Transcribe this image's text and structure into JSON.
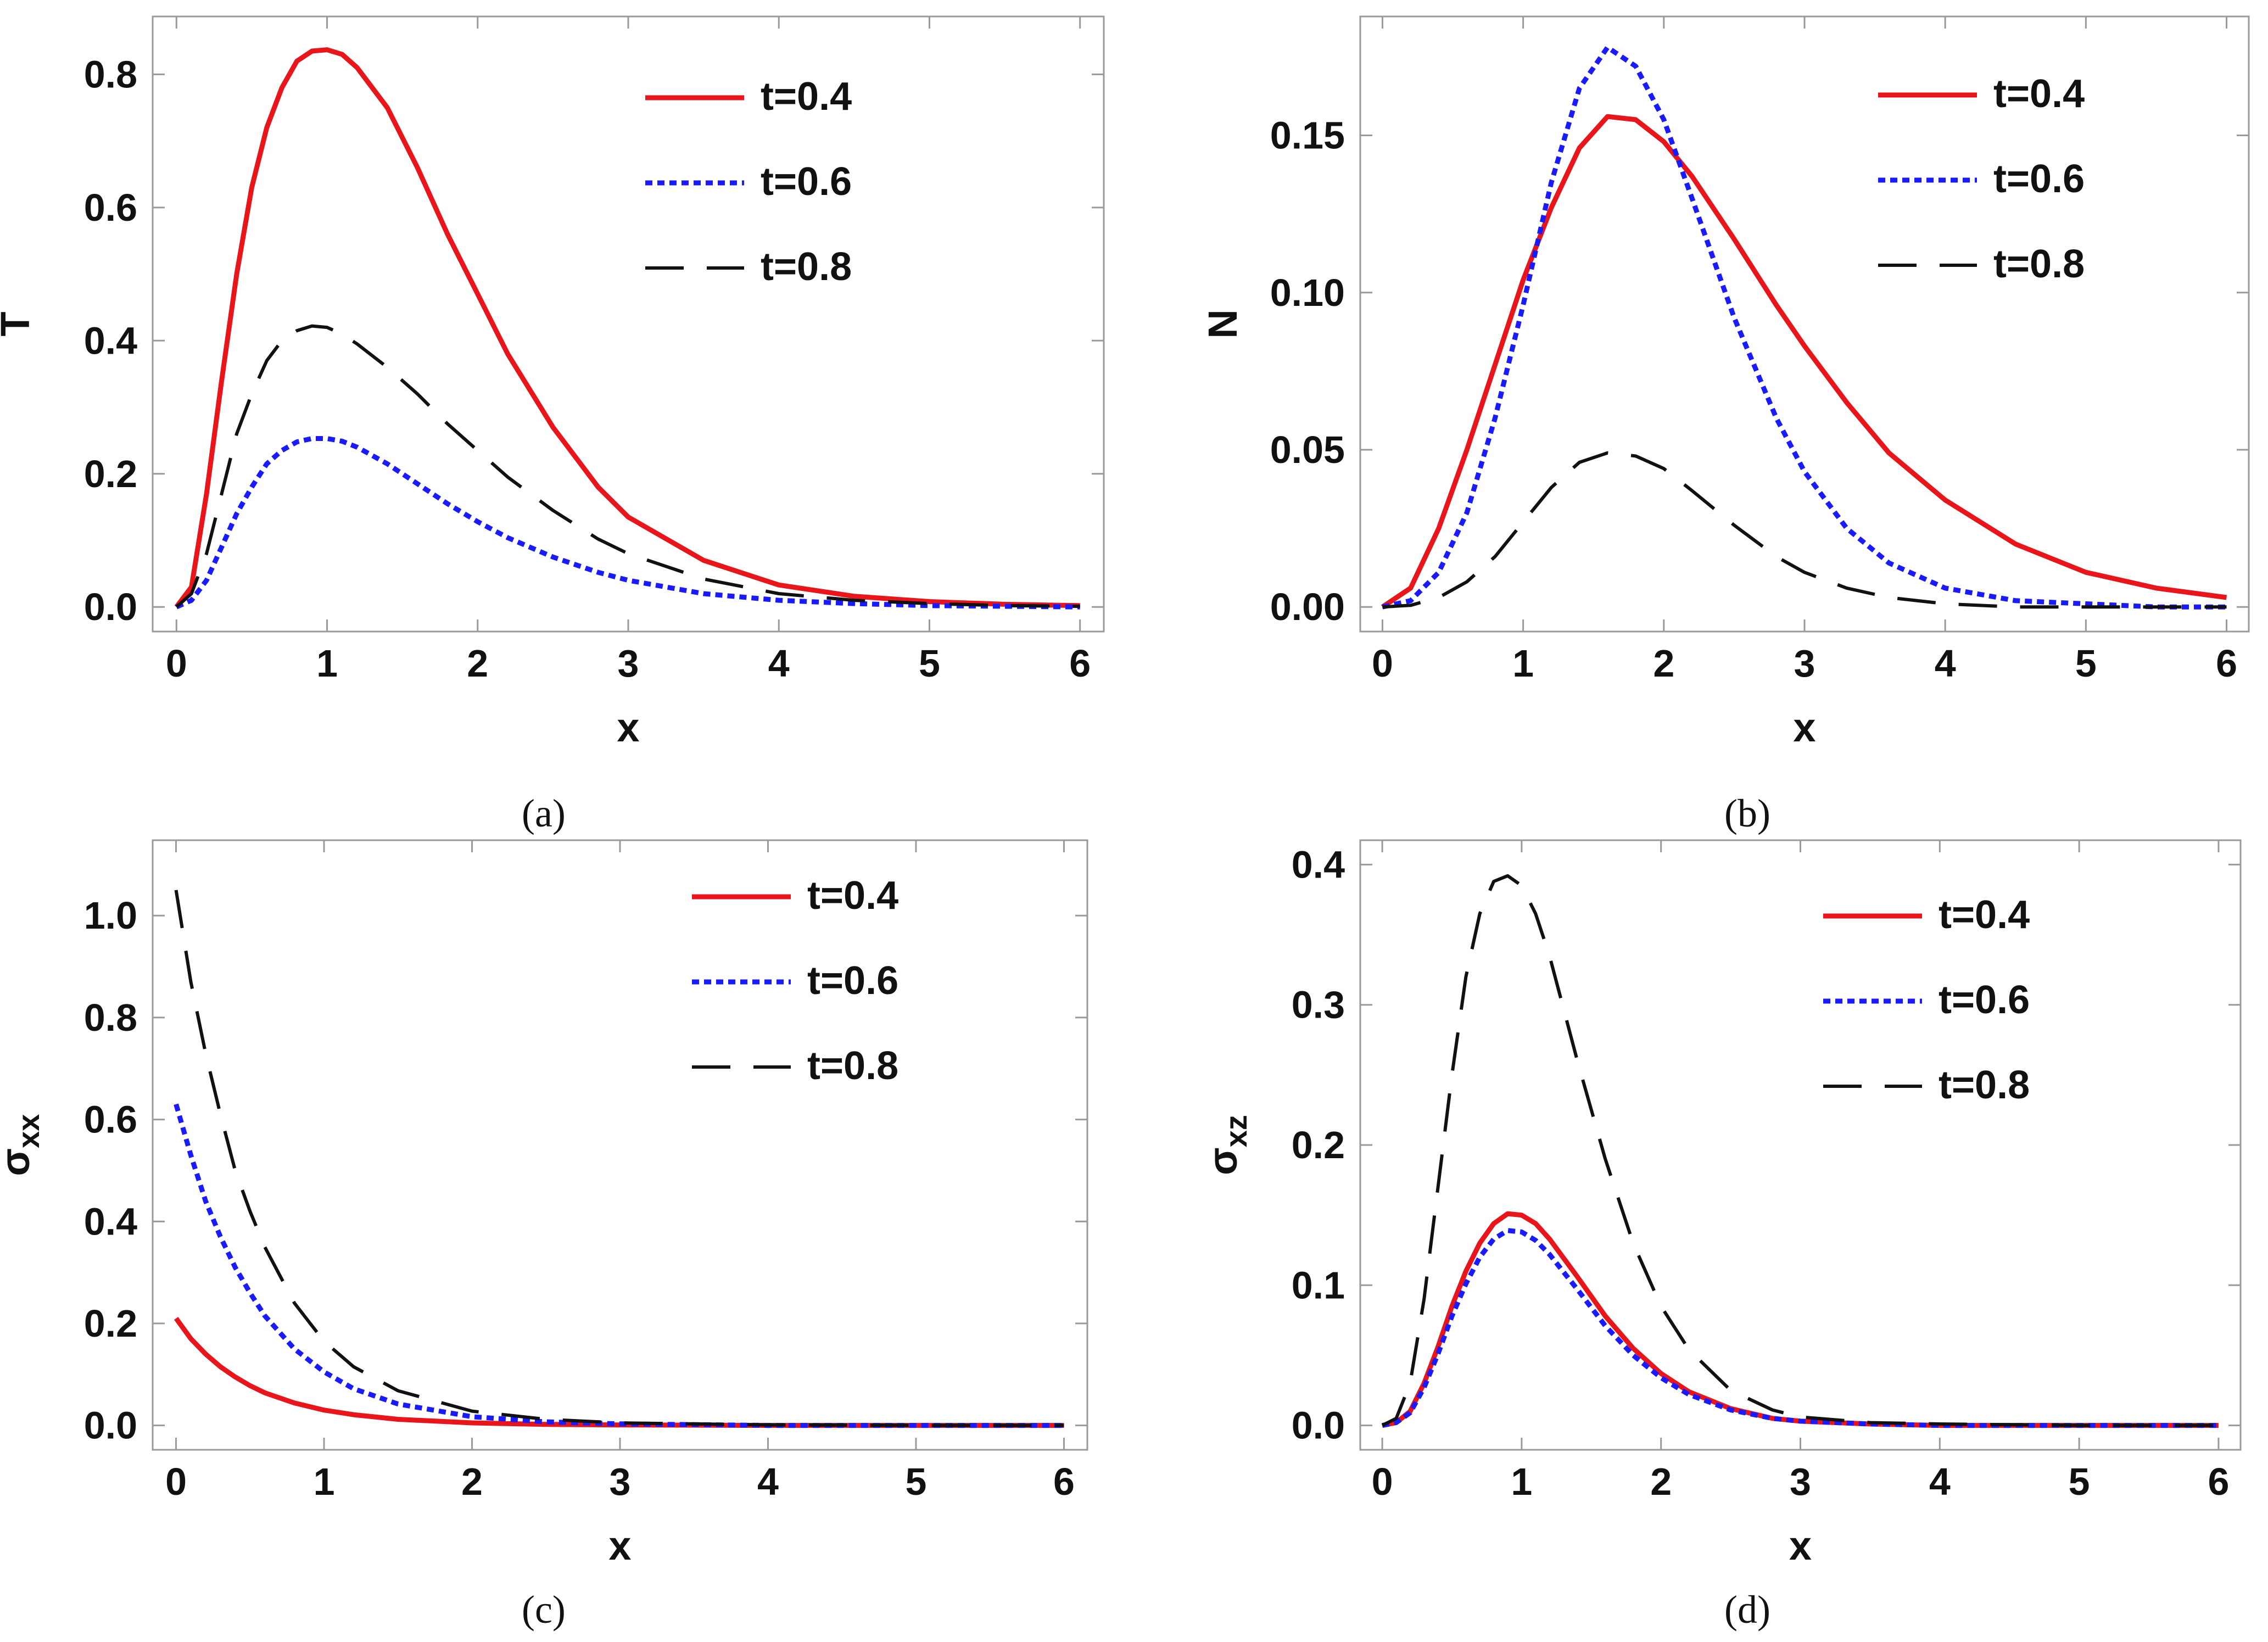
{
  "chart_data": [
    {
      "panel": "a",
      "type": "line",
      "caption": "(a)",
      "xlabel": "x",
      "ylabel": "T",
      "ylabel_sub": "",
      "xlim": [
        0,
        6
      ],
      "ylim": [
        0,
        0.85
      ],
      "xticks": [
        "0",
        "1",
        "2",
        "3",
        "4",
        "5",
        "6"
      ],
      "yticks": [
        "0.0",
        "0.2",
        "0.4",
        "0.6",
        "0.8"
      ],
      "xtick_values": [
        0,
        1,
        2,
        3,
        4,
        5,
        6
      ],
      "ytick_values": [
        0,
        0.2,
        0.4,
        0.6,
        0.8
      ],
      "legend_position": "top-right",
      "grid": false,
      "series": [
        {
          "name": "t=0.4",
          "color": "#e8161b",
          "style": "solid",
          "x": [
            0,
            0.1,
            0.2,
            0.3,
            0.4,
            0.5,
            0.6,
            0.7,
            0.8,
            0.9,
            1.0,
            1.1,
            1.2,
            1.4,
            1.6,
            1.8,
            2.0,
            2.2,
            2.5,
            2.8,
            3.0,
            3.5,
            4.0,
            4.5,
            5.0,
            5.5,
            6.0
          ],
          "y": [
            0.0,
            0.03,
            0.17,
            0.34,
            0.5,
            0.63,
            0.72,
            0.78,
            0.82,
            0.835,
            0.837,
            0.83,
            0.81,
            0.75,
            0.66,
            0.56,
            0.47,
            0.38,
            0.27,
            0.18,
            0.135,
            0.07,
            0.033,
            0.016,
            0.008,
            0.004,
            0.002
          ]
        },
        {
          "name": "t=0.6",
          "color": "#1a1aff",
          "style": "dotted",
          "x": [
            0,
            0.1,
            0.2,
            0.3,
            0.4,
            0.5,
            0.6,
            0.7,
            0.8,
            0.9,
            1.0,
            1.1,
            1.2,
            1.4,
            1.6,
            1.8,
            2.0,
            2.2,
            2.5,
            2.8,
            3.0,
            3.5,
            4.0,
            4.5,
            5.0,
            5.5,
            6.0
          ],
          "y": [
            0.0,
            0.01,
            0.04,
            0.09,
            0.14,
            0.18,
            0.215,
            0.235,
            0.248,
            0.253,
            0.253,
            0.249,
            0.24,
            0.215,
            0.185,
            0.155,
            0.128,
            0.104,
            0.075,
            0.052,
            0.04,
            0.02,
            0.01,
            0.005,
            0.002,
            0.001,
            0.0
          ]
        },
        {
          "name": "t=0.8",
          "color": "#111111",
          "style": "dashed",
          "x": [
            0,
            0.1,
            0.2,
            0.3,
            0.4,
            0.5,
            0.6,
            0.7,
            0.8,
            0.9,
            1.0,
            1.1,
            1.2,
            1.4,
            1.6,
            1.8,
            2.0,
            2.2,
            2.5,
            2.8,
            3.0,
            3.5,
            4.0,
            4.5,
            5.0,
            5.5,
            6.0
          ],
          "y": [
            0.0,
            0.02,
            0.08,
            0.17,
            0.26,
            0.32,
            0.37,
            0.4,
            0.415,
            0.422,
            0.42,
            0.41,
            0.395,
            0.36,
            0.32,
            0.275,
            0.235,
            0.195,
            0.145,
            0.102,
            0.08,
            0.042,
            0.02,
            0.01,
            0.005,
            0.002,
            0.001
          ]
        }
      ]
    },
    {
      "panel": "b",
      "type": "line",
      "caption": "(b)",
      "xlabel": "x",
      "ylabel": "N",
      "ylabel_sub": "",
      "xlim": [
        0,
        6
      ],
      "ylim": [
        0,
        0.18
      ],
      "xticks": [
        "0",
        "1",
        "2",
        "3",
        "4",
        "5",
        "6"
      ],
      "yticks": [
        "0.00",
        "0.05",
        "0.10",
        "0.15"
      ],
      "xtick_values": [
        0,
        1,
        2,
        3,
        4,
        5,
        6
      ],
      "ytick_values": [
        0,
        0.05,
        0.1,
        0.15
      ],
      "legend_position": "top-right",
      "grid": false,
      "series": [
        {
          "name": "t=0.4",
          "color": "#e8161b",
          "style": "solid",
          "x": [
            0,
            0.2,
            0.4,
            0.6,
            0.8,
            1.0,
            1.2,
            1.4,
            1.6,
            1.8,
            2.0,
            2.2,
            2.5,
            2.8,
            3.0,
            3.3,
            3.6,
            4.0,
            4.5,
            5.0,
            5.5,
            6.0
          ],
          "y": [
            0.0,
            0.006,
            0.025,
            0.05,
            0.077,
            0.104,
            0.127,
            0.146,
            0.156,
            0.155,
            0.148,
            0.137,
            0.117,
            0.096,
            0.083,
            0.065,
            0.049,
            0.034,
            0.02,
            0.011,
            0.006,
            0.003
          ]
        },
        {
          "name": "t=0.6",
          "color": "#1a1aff",
          "style": "dotted",
          "x": [
            0,
            0.2,
            0.4,
            0.6,
            0.8,
            1.0,
            1.2,
            1.4,
            1.6,
            1.8,
            2.0,
            2.2,
            2.5,
            2.8,
            3.0,
            3.3,
            3.6,
            4.0,
            4.5,
            5.0,
            5.5,
            6.0
          ],
          "y": [
            0.0,
            0.002,
            0.011,
            0.03,
            0.06,
            0.096,
            0.135,
            0.165,
            0.178,
            0.172,
            0.155,
            0.13,
            0.092,
            0.06,
            0.043,
            0.025,
            0.014,
            0.006,
            0.002,
            0.001,
            0.0,
            0.0
          ]
        },
        {
          "name": "t=0.8",
          "color": "#111111",
          "style": "dashed",
          "x": [
            0,
            0.2,
            0.4,
            0.6,
            0.8,
            1.0,
            1.2,
            1.4,
            1.6,
            1.8,
            2.0,
            2.2,
            2.5,
            2.8,
            3.0,
            3.3,
            3.6,
            4.0,
            4.5,
            5.0,
            5.5,
            6.0
          ],
          "y": [
            0.0,
            0.0005,
            0.003,
            0.008,
            0.016,
            0.027,
            0.038,
            0.046,
            0.049,
            0.048,
            0.044,
            0.037,
            0.026,
            0.016,
            0.011,
            0.006,
            0.003,
            0.001,
            0.0,
            0.0,
            0.0,
            0.0
          ]
        }
      ]
    },
    {
      "panel": "c",
      "type": "line",
      "caption": "(c)",
      "xlabel": "x",
      "ylabel": "σ",
      "ylabel_sub": "xx",
      "xlim": [
        0,
        6
      ],
      "ylim": [
        0,
        1.1
      ],
      "xticks": [
        "0",
        "1",
        "2",
        "3",
        "4",
        "5",
        "6"
      ],
      "yticks": [
        "0.0",
        "0.2",
        "0.4",
        "0.6",
        "0.8",
        "1.0"
      ],
      "xtick_values": [
        0,
        1,
        2,
        3,
        4,
        5,
        6
      ],
      "ytick_values": [
        0,
        0.2,
        0.4,
        0.6,
        0.8,
        1.0
      ],
      "legend_position": "top-right",
      "grid": false,
      "series": [
        {
          "name": "t=0.4",
          "color": "#e8161b",
          "style": "solid",
          "x": [
            0,
            0.1,
            0.2,
            0.3,
            0.4,
            0.5,
            0.6,
            0.8,
            1.0,
            1.2,
            1.5,
            2.0,
            2.5,
            3.0,
            4.0,
            5.0,
            6.0
          ],
          "y": [
            0.21,
            0.17,
            0.14,
            0.115,
            0.095,
            0.078,
            0.064,
            0.044,
            0.03,
            0.021,
            0.012,
            0.005,
            0.002,
            0.001,
            0.0,
            0.0,
            0.0
          ]
        },
        {
          "name": "t=0.6",
          "color": "#1a1aff",
          "style": "dotted",
          "x": [
            0,
            0.1,
            0.2,
            0.3,
            0.4,
            0.5,
            0.6,
            0.8,
            1.0,
            1.2,
            1.5,
            2.0,
            2.5,
            3.0,
            4.0,
            5.0,
            6.0
          ],
          "y": [
            0.63,
            0.53,
            0.44,
            0.37,
            0.31,
            0.26,
            0.215,
            0.15,
            0.105,
            0.072,
            0.042,
            0.017,
            0.007,
            0.003,
            0.0,
            0.0,
            0.0
          ]
        },
        {
          "name": "t=0.8",
          "color": "#111111",
          "style": "dashed",
          "x": [
            0,
            0.1,
            0.2,
            0.3,
            0.4,
            0.5,
            0.6,
            0.8,
            1.0,
            1.2,
            1.5,
            2.0,
            2.5,
            3.0,
            4.0,
            5.0,
            6.0
          ],
          "y": [
            1.05,
            0.87,
            0.73,
            0.61,
            0.5,
            0.42,
            0.35,
            0.24,
            0.165,
            0.115,
            0.068,
            0.028,
            0.012,
            0.005,
            0.001,
            0.0,
            0.0
          ]
        }
      ]
    },
    {
      "panel": "d",
      "type": "line",
      "caption": "(d)",
      "xlabel": "x",
      "ylabel": "σ",
      "ylabel_sub": "xz",
      "xlim": [
        0,
        6
      ],
      "ylim": [
        0,
        0.4
      ],
      "xticks": [
        "0",
        "1",
        "2",
        "3",
        "4",
        "5",
        "6"
      ],
      "yticks": [
        "0.0",
        "0.1",
        "0.2",
        "0.3",
        "0.4"
      ],
      "xtick_values": [
        0,
        1,
        2,
        3,
        4,
        5,
        6
      ],
      "ytick_values": [
        0,
        0.1,
        0.2,
        0.3,
        0.4
      ],
      "legend_position": "top-right",
      "grid": false,
      "series": [
        {
          "name": "t=0.4",
          "color": "#e8161b",
          "style": "solid",
          "x": [
            0,
            0.1,
            0.2,
            0.3,
            0.4,
            0.5,
            0.6,
            0.7,
            0.8,
            0.9,
            1.0,
            1.1,
            1.2,
            1.4,
            1.6,
            1.8,
            2.0,
            2.2,
            2.5,
            2.8,
            3.0,
            3.5,
            4.0,
            5.0,
            6.0
          ],
          "y": [
            0.0,
            0.002,
            0.01,
            0.03,
            0.056,
            0.085,
            0.11,
            0.13,
            0.144,
            0.151,
            0.15,
            0.144,
            0.133,
            0.106,
            0.078,
            0.055,
            0.037,
            0.024,
            0.012,
            0.005,
            0.003,
            0.001,
            0.0,
            0.0,
            0.0
          ]
        },
        {
          "name": "t=0.6",
          "color": "#1a1aff",
          "style": "dotted",
          "x": [
            0,
            0.1,
            0.2,
            0.3,
            0.4,
            0.5,
            0.6,
            0.7,
            0.8,
            0.9,
            1.0,
            1.1,
            1.2,
            1.4,
            1.6,
            1.8,
            2.0,
            2.2,
            2.5,
            2.8,
            3.0,
            3.5,
            4.0,
            5.0,
            6.0
          ],
          "y": [
            0.0,
            0.002,
            0.009,
            0.027,
            0.051,
            0.078,
            0.101,
            0.12,
            0.133,
            0.139,
            0.138,
            0.132,
            0.122,
            0.097,
            0.071,
            0.05,
            0.034,
            0.022,
            0.011,
            0.005,
            0.003,
            0.001,
            0.0,
            0.0,
            0.0
          ]
        },
        {
          "name": "t=0.8",
          "color": "#111111",
          "style": "dashed",
          "x": [
            0,
            0.1,
            0.2,
            0.3,
            0.4,
            0.5,
            0.6,
            0.7,
            0.8,
            0.9,
            1.0,
            1.1,
            1.2,
            1.4,
            1.6,
            1.8,
            2.0,
            2.2,
            2.5,
            2.8,
            3.0,
            3.5,
            4.0,
            5.0,
            6.0
          ],
          "y": [
            0.0,
            0.005,
            0.03,
            0.09,
            0.17,
            0.25,
            0.32,
            0.365,
            0.388,
            0.392,
            0.385,
            0.365,
            0.335,
            0.26,
            0.19,
            0.13,
            0.085,
            0.054,
            0.025,
            0.011,
            0.006,
            0.002,
            0.001,
            0.0,
            0.0
          ]
        }
      ]
    }
  ]
}
